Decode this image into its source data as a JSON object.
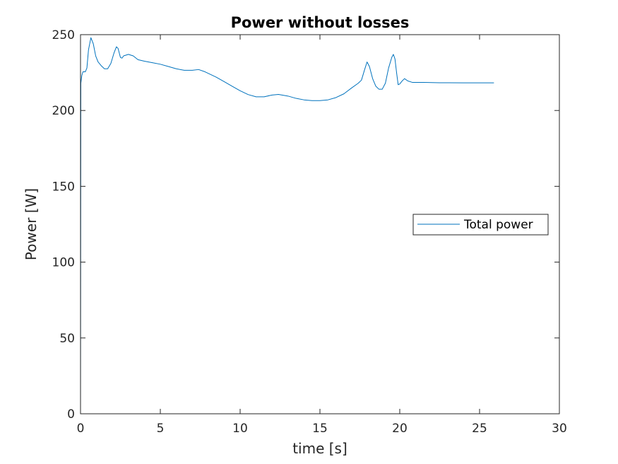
{
  "chart_data": {
    "type": "line",
    "title": "Power without losses",
    "xlabel": "time [s]",
    "ylabel": "Power [W]",
    "xlim": [
      0,
      30
    ],
    "ylim": [
      0,
      250
    ],
    "xticks": [
      0,
      5,
      10,
      15,
      20,
      25,
      30
    ],
    "yticks": [
      0,
      50,
      100,
      150,
      200,
      250
    ],
    "grid": false,
    "legend_position": "right",
    "series": [
      {
        "name": "Total power",
        "color": "#0072bd",
        "points": [
          [
            0,
            0
          ],
          [
            0.02,
            218
          ],
          [
            0.08,
            223
          ],
          [
            0.15,
            225.5
          ],
          [
            0.3,
            225.5
          ],
          [
            0.4,
            228
          ],
          [
            0.5,
            240
          ],
          [
            0.65,
            248
          ],
          [
            0.8,
            244
          ],
          [
            0.95,
            236
          ],
          [
            1.1,
            232
          ],
          [
            1.3,
            229.5
          ],
          [
            1.5,
            227.5
          ],
          [
            1.7,
            227.5
          ],
          [
            1.9,
            231
          ],
          [
            2.1,
            238
          ],
          [
            2.25,
            242
          ],
          [
            2.35,
            241
          ],
          [
            2.5,
            235
          ],
          [
            2.6,
            234.5
          ],
          [
            2.7,
            236
          ],
          [
            3.0,
            237
          ],
          [
            3.3,
            236
          ],
          [
            3.6,
            233.5
          ],
          [
            4.0,
            232.5
          ],
          [
            4.5,
            231.5
          ],
          [
            5.0,
            230.5
          ],
          [
            5.5,
            229
          ],
          [
            6.0,
            227.5
          ],
          [
            6.5,
            226.5
          ],
          [
            7.0,
            226.5
          ],
          [
            7.4,
            227
          ],
          [
            7.8,
            225.5
          ],
          [
            8.5,
            222
          ],
          [
            9.0,
            219
          ],
          [
            9.5,
            216
          ],
          [
            10.0,
            213
          ],
          [
            10.5,
            210.5
          ],
          [
            11.0,
            209
          ],
          [
            11.5,
            209
          ],
          [
            12.0,
            210.2
          ],
          [
            12.4,
            210.6
          ],
          [
            13.0,
            209.5
          ],
          [
            13.5,
            208
          ],
          [
            14.0,
            207
          ],
          [
            14.5,
            206.5
          ],
          [
            15.0,
            206.5
          ],
          [
            15.5,
            207
          ],
          [
            16.0,
            208.5
          ],
          [
            16.5,
            211
          ],
          [
            17.0,
            215
          ],
          [
            17.4,
            218
          ],
          [
            17.6,
            220
          ],
          [
            17.8,
            227
          ],
          [
            17.95,
            232
          ],
          [
            18.1,
            229
          ],
          [
            18.3,
            221
          ],
          [
            18.5,
            216
          ],
          [
            18.7,
            214
          ],
          [
            18.9,
            214
          ],
          [
            19.1,
            218
          ],
          [
            19.3,
            228
          ],
          [
            19.5,
            235
          ],
          [
            19.6,
            237
          ],
          [
            19.7,
            234
          ],
          [
            19.8,
            225
          ],
          [
            19.9,
            217
          ],
          [
            20.0,
            217.5
          ],
          [
            20.15,
            219.5
          ],
          [
            20.3,
            221
          ],
          [
            20.5,
            219.5
          ],
          [
            20.8,
            218.5
          ],
          [
            21.5,
            218.5
          ],
          [
            22.5,
            218.3
          ],
          [
            24.0,
            218.2
          ],
          [
            25.9,
            218.2
          ]
        ]
      }
    ]
  }
}
